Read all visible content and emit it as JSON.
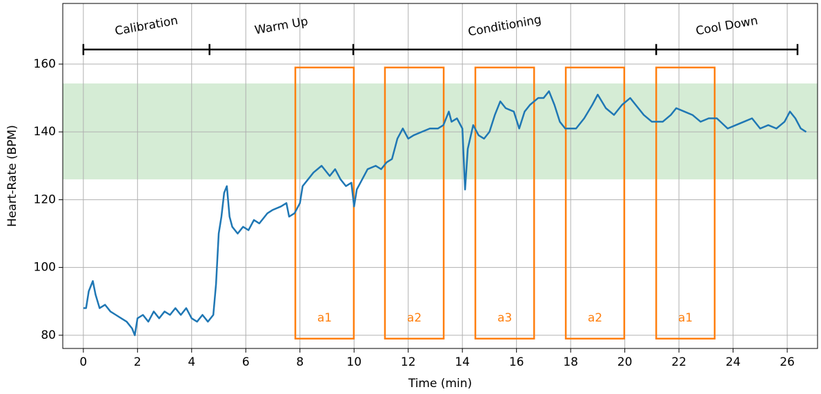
{
  "chart_data": {
    "type": "line",
    "x_label": "Time (min)",
    "y_label": "Heart-Rate (BPM)",
    "xlim": [
      -0.76,
      27.12
    ],
    "ylim": [
      76.1,
      177.9
    ],
    "xticks": [
      0,
      2,
      4,
      6,
      8,
      10,
      12,
      14,
      16,
      18,
      20,
      22,
      24,
      26
    ],
    "yticks": [
      80,
      100,
      120,
      140,
      160
    ],
    "grid": true,
    "target_zone": {
      "low": 126,
      "high": 154.3,
      "color": "#2ca02c"
    },
    "phase_level": 164.3,
    "phase_bounds": [
      0,
      4.66,
      9.97,
      21.16,
      26.38
    ],
    "phases": [
      "Calibration",
      "Warm Up",
      "Conditioning",
      "Cool Down"
    ],
    "region_color": "#ff7f0e",
    "regions": [
      {
        "label": "a1",
        "x0": 7.83,
        "x1": 9.99,
        "y0": 79,
        "y1": 159
      },
      {
        "label": "a2",
        "x0": 11.14,
        "x1": 13.31,
        "y0": 79,
        "y1": 159
      },
      {
        "label": "a3",
        "x0": 14.48,
        "x1": 16.65,
        "y0": 79,
        "y1": 159
      },
      {
        "label": "a2",
        "x0": 17.82,
        "x1": 19.98,
        "y0": 79,
        "y1": 159
      },
      {
        "label": "a1",
        "x0": 21.16,
        "x1": 23.32,
        "y0": 79,
        "y1": 159
      }
    ],
    "x": [
      0,
      0.1,
      0.2,
      0.35,
      0.45,
      0.6,
      0.8,
      1.0,
      1.2,
      1.4,
      1.6,
      1.8,
      1.9,
      2.0,
      2.2,
      2.4,
      2.6,
      2.8,
      3.0,
      3.2,
      3.4,
      3.6,
      3.8,
      4.0,
      4.2,
      4.4,
      4.6,
      4.8,
      4.9,
      5.0,
      5.1,
      5.2,
      5.3,
      5.4,
      5.5,
      5.7,
      5.9,
      6.1,
      6.3,
      6.5,
      6.8,
      7.0,
      7.3,
      7.5,
      7.6,
      7.8,
      8.0,
      8.1,
      8.3,
      8.5,
      8.8,
      9.1,
      9.3,
      9.5,
      9.7,
      9.9,
      10.0,
      10.1,
      10.3,
      10.5,
      10.8,
      11.0,
      11.2,
      11.4,
      11.6,
      11.8,
      12.0,
      12.2,
      12.5,
      12.8,
      13.1,
      13.3,
      13.5,
      13.6,
      13.8,
      14.0,
      14.1,
      14.2,
      14.4,
      14.6,
      14.8,
      15.0,
      15.2,
      15.4,
      15.6,
      15.9,
      16.1,
      16.3,
      16.5,
      16.8,
      17.0,
      17.2,
      17.4,
      17.6,
      17.8,
      18.2,
      18.5,
      18.8,
      19.0,
      19.3,
      19.6,
      19.9,
      20.2,
      20.5,
      20.7,
      21.0,
      21.4,
      21.7,
      21.9,
      22.2,
      22.5,
      22.8,
      23.1,
      23.4,
      23.8,
      24.1,
      24.4,
      24.7,
      25.0,
      25.3,
      25.6,
      25.9,
      26.1,
      26.3,
      26.5,
      26.7
    ],
    "series": [
      {
        "color": "#1f77b4",
        "values": [
          88,
          88,
          93,
          96,
          92,
          88,
          89,
          87,
          86,
          85,
          84,
          82,
          80,
          85,
          86,
          84,
          87,
          85,
          87,
          86,
          88,
          86,
          88,
          85,
          84,
          86,
          84,
          86,
          95,
          110,
          115,
          122,
          124,
          115,
          112,
          110,
          112,
          111,
          114,
          113,
          116,
          117,
          118,
          119,
          115,
          116,
          119,
          124,
          126,
          128,
          130,
          127,
          129,
          126,
          124,
          125,
          118,
          123,
          126,
          129,
          130,
          129,
          131,
          132,
          138,
          141,
          138,
          139,
          140,
          141,
          141,
          142,
          146,
          143,
          144,
          141,
          123,
          135,
          142,
          139,
          138,
          140,
          145,
          149,
          147,
          146,
          141,
          146,
          148,
          150,
          150,
          152,
          148,
          143,
          141,
          141,
          144,
          148,
          151,
          147,
          145,
          148,
          150,
          147,
          145,
          143,
          143,
          145,
          147,
          146,
          145,
          143,
          144,
          144,
          141,
          142,
          143,
          144,
          141,
          142,
          141,
          143,
          146,
          144,
          141,
          140
        ]
      }
    ]
  }
}
